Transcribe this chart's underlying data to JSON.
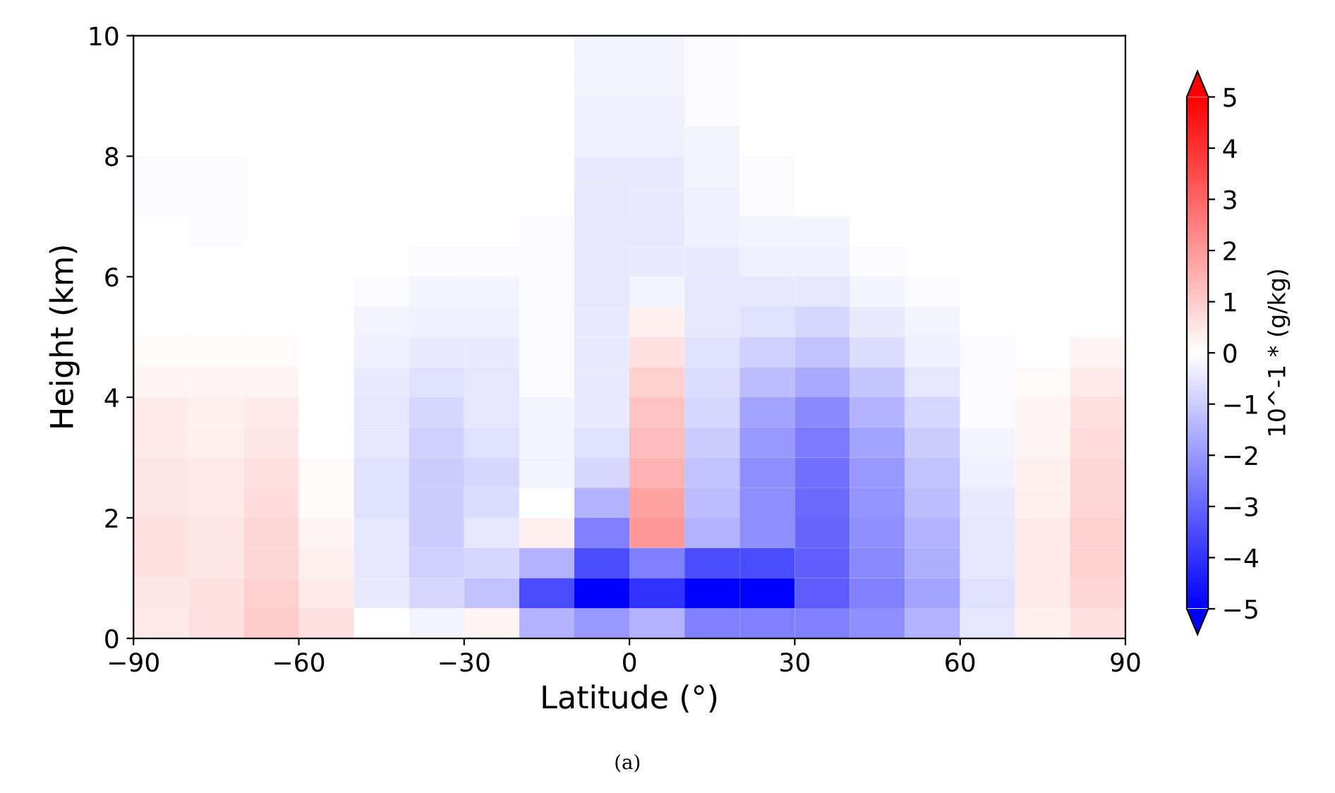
{
  "chart_data": {
    "type": "heatmap",
    "xlabel": "Latitude (°)",
    "ylabel": "Height (km)",
    "clabel": "10^-1 * (g/kg)",
    "annotations": [
      "(a)"
    ],
    "x": [
      -85,
      -75,
      -65,
      -55,
      -45,
      -35,
      -25,
      -15,
      -5,
      5,
      15,
      25,
      35,
      45,
      55,
      65,
      75,
      85
    ],
    "y": [
      9.75,
      9.25,
      8.75,
      8.25,
      7.75,
      7.25,
      6.75,
      6.25,
      5.75,
      5.25,
      4.75,
      4.25,
      3.75,
      3.25,
      2.75,
      2.25,
      1.75,
      1.25,
      0.75,
      0.25
    ],
    "xlim": [
      -90,
      90
    ],
    "xticks": [
      -90,
      -60,
      -30,
      0,
      30,
      60,
      90
    ],
    "ylim": [
      0,
      10
    ],
    "yticks": [
      0,
      2,
      4,
      6,
      8,
      10
    ],
    "clim": [
      -5,
      5
    ],
    "cticks": [
      -5,
      -4,
      -3,
      -2,
      -1,
      0,
      1,
      2,
      3,
      4,
      5
    ],
    "grid": false,
    "cells": [
      [
        0,
        0,
        0,
        0,
        0,
        0,
        0,
        0,
        -0.2,
        -0.2,
        -0.1,
        0,
        0,
        0,
        0,
        0,
        0,
        0
      ],
      [
        0,
        0,
        0,
        0,
        0,
        0,
        0,
        0,
        -0.2,
        -0.2,
        -0.1,
        0,
        0,
        0,
        0,
        0,
        0,
        0
      ],
      [
        0,
        0,
        0,
        0,
        0,
        0,
        0,
        0,
        -0.3,
        -0.3,
        -0.1,
        0,
        0,
        0,
        0,
        0,
        0,
        0
      ],
      [
        0,
        0,
        0,
        0,
        0,
        0,
        0,
        0,
        -0.3,
        -0.3,
        -0.2,
        0,
        0,
        0,
        0,
        0,
        0,
        0
      ],
      [
        -0.1,
        -0.1,
        0,
        0,
        0,
        0,
        0,
        0,
        -0.4,
        -0.4,
        -0.2,
        -0.1,
        0,
        0,
        0,
        0,
        0,
        0
      ],
      [
        -0.1,
        -0.1,
        0,
        0,
        0,
        0,
        0,
        0,
        -0.5,
        -0.4,
        -0.3,
        -0.1,
        0,
        0,
        0,
        0,
        0,
        0
      ],
      [
        0,
        -0.1,
        0,
        0,
        0,
        0,
        0,
        -0.1,
        -0.5,
        -0.5,
        -0.3,
        -0.2,
        -0.2,
        0,
        0,
        0,
        0,
        0
      ],
      [
        0,
        0,
        0,
        0,
        0,
        -0.1,
        -0.1,
        -0.1,
        -0.5,
        -0.4,
        -0.4,
        -0.3,
        -0.3,
        -0.1,
        0,
        0,
        0,
        0
      ],
      [
        0,
        0,
        0,
        0,
        -0.1,
        -0.2,
        -0.2,
        -0.1,
        -0.5,
        -0.2,
        -0.5,
        -0.5,
        -0.5,
        -0.2,
        -0.1,
        0,
        0,
        0
      ],
      [
        0,
        0,
        0,
        0,
        -0.2,
        -0.3,
        -0.3,
        -0.1,
        -0.4,
        0.3,
        -0.5,
        -0.6,
        -0.8,
        -0.4,
        -0.2,
        0,
        0,
        0
      ],
      [
        0.1,
        0.1,
        0.1,
        0,
        -0.3,
        -0.4,
        -0.4,
        -0.1,
        -0.4,
        0.6,
        -0.6,
        -0.9,
        -1.2,
        -0.7,
        -0.3,
        -0.1,
        0,
        0.2
      ],
      [
        0.2,
        0.2,
        0.2,
        0,
        -0.4,
        -0.6,
        -0.5,
        -0.1,
        -0.4,
        0.9,
        -0.7,
        -1.3,
        -1.7,
        -1.1,
        -0.5,
        -0.1,
        0.1,
        0.4
      ],
      [
        0.4,
        0.3,
        0.4,
        0,
        -0.5,
        -0.8,
        -0.5,
        -0.2,
        -0.4,
        1.2,
        -0.8,
        -1.8,
        -2.3,
        -1.5,
        -0.8,
        -0.1,
        0.2,
        0.6
      ],
      [
        0.4,
        0.3,
        0.5,
        0,
        -0.5,
        -0.9,
        -0.6,
        -0.2,
        -0.6,
        1.3,
        -1,
        -2,
        -2.6,
        -1.8,
        -1,
        -0.2,
        0.2,
        0.7
      ],
      [
        0.5,
        0.4,
        0.6,
        0.1,
        -0.6,
        -1,
        -0.8,
        -0.2,
        -0.8,
        1.5,
        -1.2,
        -2.2,
        -2.8,
        -2,
        -1.2,
        -0.3,
        0.3,
        0.8
      ],
      [
        0.5,
        0.4,
        0.7,
        0.1,
        -0.6,
        -1,
        -0.7,
        0,
        -1.5,
        1.8,
        -1.3,
        -2.2,
        -2.9,
        -2.1,
        -1.3,
        -0.4,
        0.3,
        0.8
      ],
      [
        0.6,
        0.5,
        0.8,
        0.2,
        -0.5,
        -1,
        -0.5,
        0.3,
        -2.5,
        2,
        -1.5,
        -2.2,
        -3,
        -2.2,
        -1.5,
        -0.5,
        0.4,
        0.9
      ],
      [
        0.6,
        0.5,
        0.8,
        0.3,
        -0.5,
        -0.9,
        -0.8,
        -1.5,
        -3.5,
        -2.5,
        -3.5,
        -3.5,
        -3.1,
        -2.3,
        -1.6,
        -0.5,
        0.4,
        0.9
      ],
      [
        0.5,
        0.6,
        0.9,
        0.4,
        -0.4,
        -0.8,
        -1.2,
        -3.5,
        -5,
        -4,
        -5,
        -5,
        -3.2,
        -2.5,
        -1.8,
        -0.6,
        0.4,
        0.8
      ],
      [
        0.4,
        0.6,
        1,
        0.6,
        0,
        -0.2,
        0.2,
        -1.5,
        -2,
        -1.5,
        -2.5,
        -2.5,
        -2.5,
        -2.2,
        -1.5,
        -0.5,
        0.3,
        0.6
      ]
    ]
  }
}
